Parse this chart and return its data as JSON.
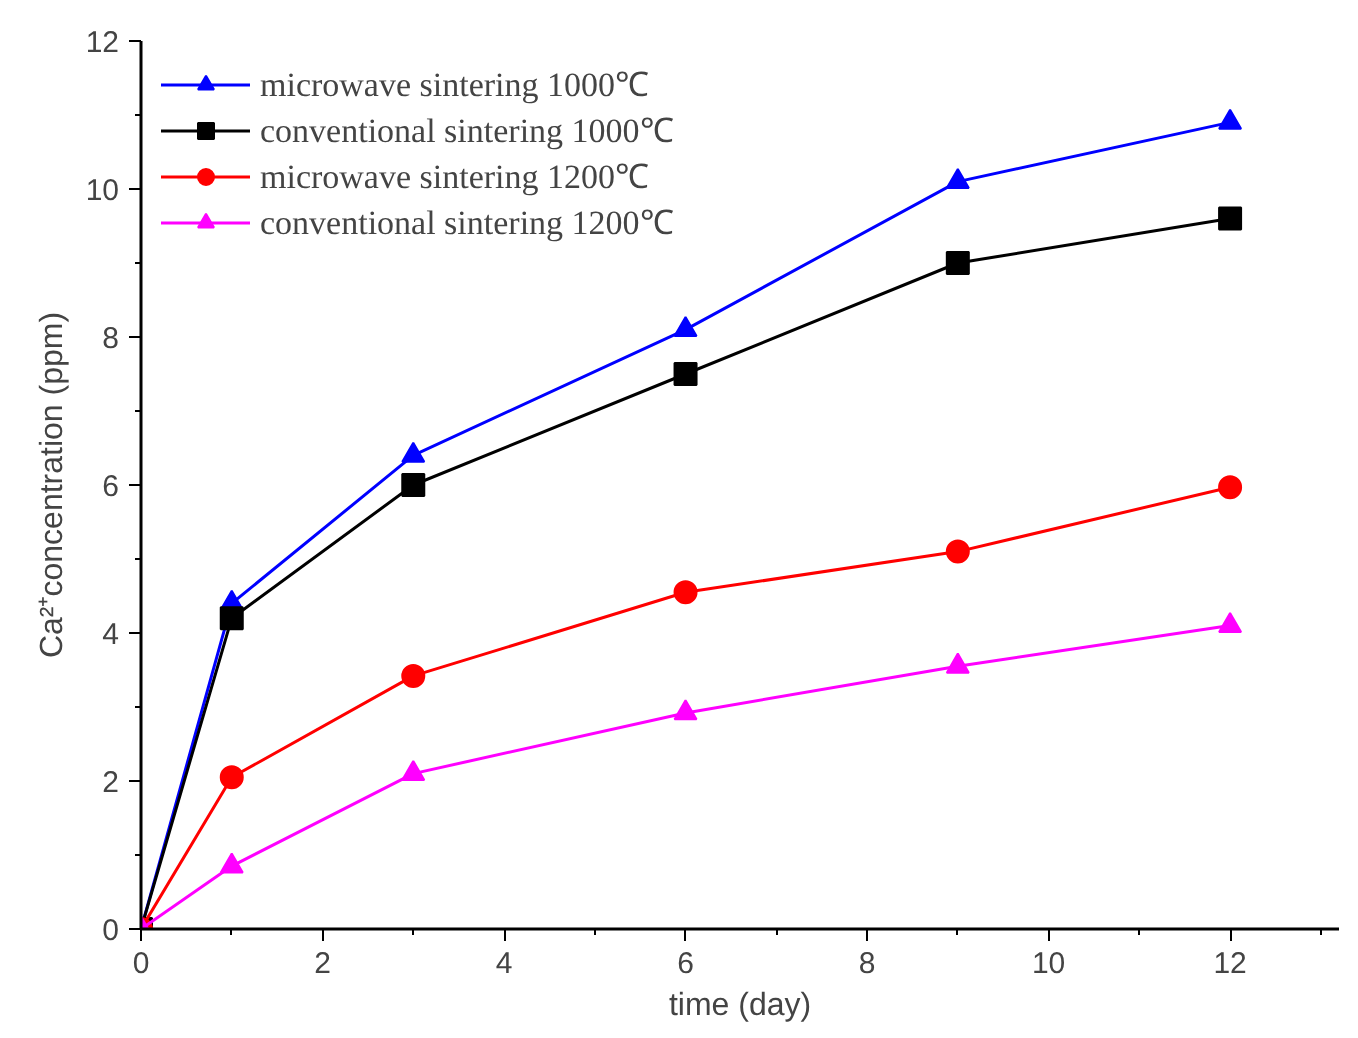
{
  "chart_data": {
    "type": "line",
    "xlabel": "time (day)",
    "ylabel": "Ca²⁺concentration (ppm)",
    "x": [
      0,
      1,
      3,
      6,
      9,
      12
    ],
    "series": [
      {
        "name": "microwave sintering 1000℃",
        "color": "#0000ff",
        "marker": "triangle",
        "values": [
          0,
          4.4,
          6.4,
          8.1,
          10.1,
          10.9
        ]
      },
      {
        "name": "conventional sintering 1000℃",
        "color": "#000000",
        "marker": "square",
        "values": [
          0,
          4.2,
          6.0,
          7.5,
          9.0,
          9.6
        ]
      },
      {
        "name": "microwave sintering 1200℃",
        "color": "#ff0000",
        "marker": "circle",
        "values": [
          0,
          2.05,
          3.42,
          4.55,
          5.1,
          5.97
        ]
      },
      {
        "name": "conventional sintering 1200℃",
        "color": "#ff00ff",
        "marker": "triangle",
        "values": [
          0,
          0.85,
          2.1,
          2.92,
          3.55,
          4.1
        ]
      }
    ],
    "xlim": [
      0,
      13.2
    ],
    "ylim": [
      0,
      12
    ],
    "xticks": [
      0,
      2,
      4,
      6,
      8,
      10,
      12
    ],
    "yticks": [
      0,
      2,
      4,
      6,
      8,
      10,
      12
    ],
    "grid": false,
    "legend": "top left"
  }
}
